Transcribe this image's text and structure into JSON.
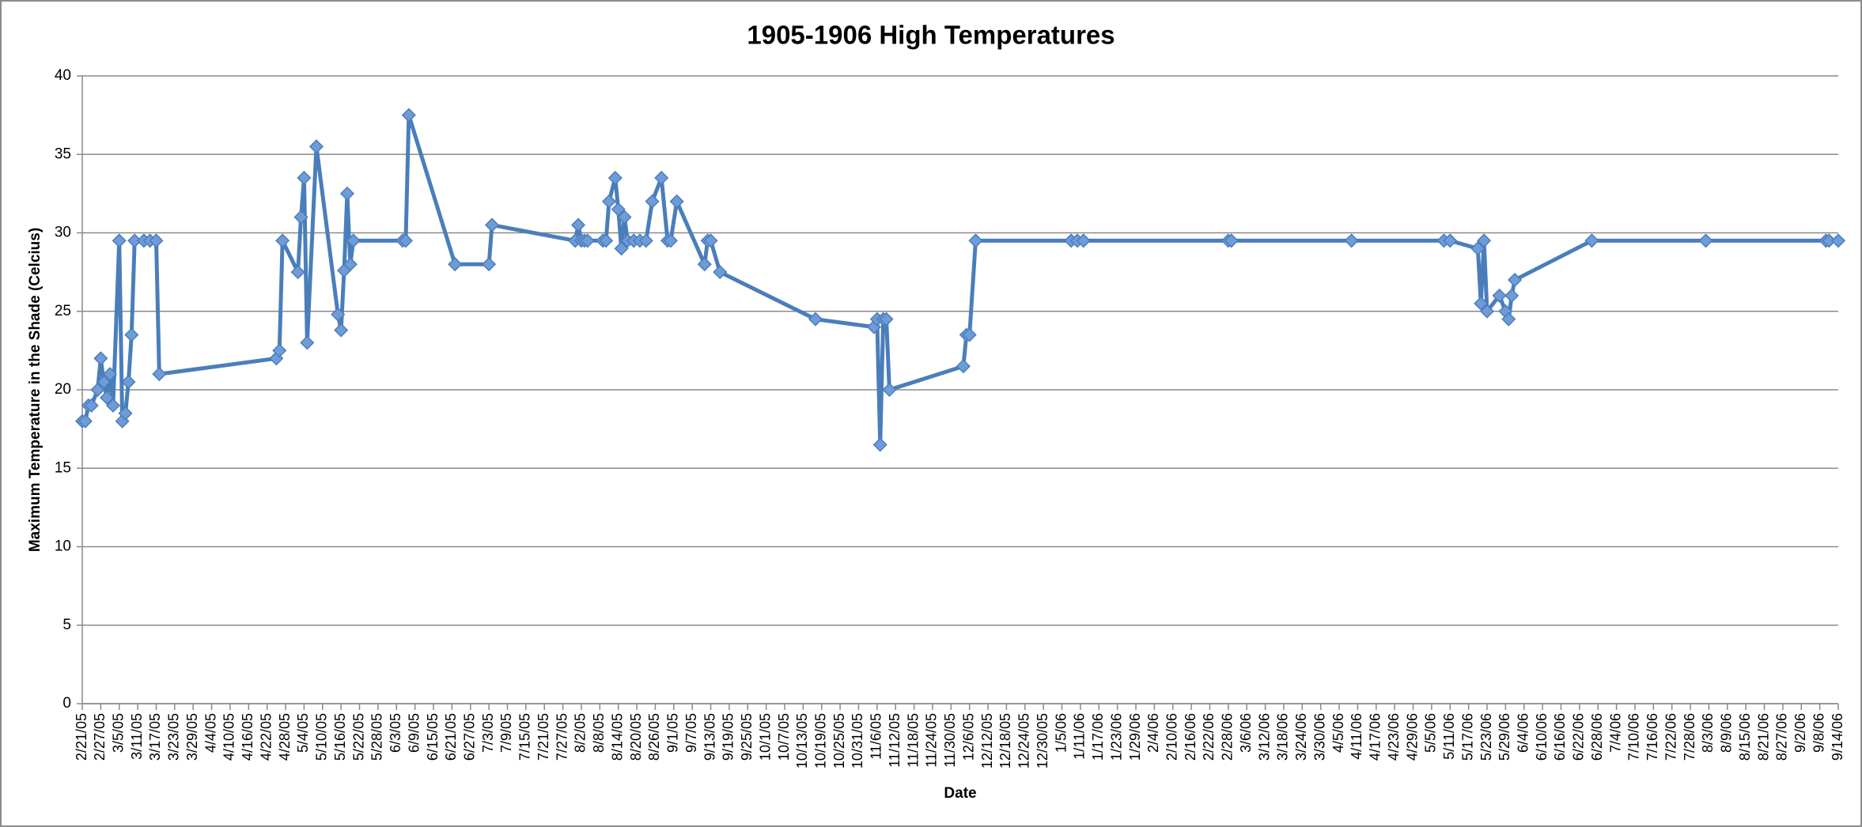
{
  "chart_data": {
    "type": "line",
    "title": "1905-1906 High Temperatures",
    "x_label": "Date",
    "y_label": "Maximum Temperature in the Shade (Celcius)",
    "color": "#4a7ebb",
    "marker_color": "#6f9bd8",
    "grid": true,
    "ylim": [
      0,
      40
    ],
    "yticks": [
      0,
      5,
      10,
      15,
      20,
      25,
      30,
      35,
      40
    ],
    "xlim": [
      "2/21/05",
      "9/14/06"
    ],
    "xticks": [
      "2/21/05",
      "2/27/05",
      "3/5/05",
      "3/11/05",
      "3/17/05",
      "3/23/05",
      "3/29/05",
      "4/4/05",
      "4/10/05",
      "4/16/05",
      "4/22/05",
      "4/28/05",
      "5/4/05",
      "5/10/05",
      "5/16/05",
      "5/22/05",
      "5/28/05",
      "6/3/05",
      "6/9/05",
      "6/15/05",
      "6/21/05",
      "6/27/05",
      "7/3/05",
      "7/9/05",
      "7/15/05",
      "7/21/05",
      "7/27/05",
      "8/2/05",
      "8/8/05",
      "8/14/05",
      "8/20/05",
      "8/26/05",
      "9/1/05",
      "9/7/05",
      "9/13/05",
      "9/19/05",
      "9/25/05",
      "10/1/05",
      "10/7/05",
      "10/13/05",
      "10/19/05",
      "10/25/05",
      "10/31/05",
      "11/6/05",
      "11/12/05",
      "11/18/05",
      "11/24/05",
      "11/30/05",
      "12/6/05",
      "12/12/05",
      "12/18/05",
      "12/24/05",
      "12/30/05",
      "1/5/06",
      "1/11/06",
      "1/17/06",
      "1/23/06",
      "1/29/06",
      "2/4/06",
      "2/10/06",
      "2/16/06",
      "2/22/06",
      "2/28/06",
      "3/6/06",
      "3/12/06",
      "3/18/06",
      "3/24/06",
      "3/30/06",
      "4/5/06",
      "4/11/06",
      "4/17/06",
      "4/23/06",
      "4/29/06",
      "5/5/06",
      "5/11/06",
      "5/17/06",
      "5/23/06",
      "5/29/06",
      "6/4/06",
      "6/10/06",
      "6/16/06",
      "6/22/06",
      "6/28/06",
      "7/4/06",
      "7/10/06",
      "7/16/06",
      "7/22/06",
      "7/28/06",
      "8/3/06",
      "8/9/06",
      "8/15/06",
      "8/21/06",
      "8/27/06",
      "9/2/06",
      "9/8/06",
      "9/14/06"
    ],
    "x": [
      "2/21/05",
      "2/22/05",
      "2/23/05",
      "2/24/05",
      "2/26/05",
      "2/27/05",
      "2/28/05",
      "3/1/05",
      "3/2/05",
      "3/3/05",
      "3/5/05",
      "3/6/05",
      "3/7/05",
      "3/8/05",
      "3/9/05",
      "3/10/05",
      "3/13/05",
      "3/15/05",
      "3/17/05",
      "3/18/05",
      "4/25/05",
      "4/26/05",
      "4/27/05",
      "5/2/05",
      "5/3/05",
      "5/4/05",
      "5/5/05",
      "5/8/05",
      "5/15/05",
      "5/16/05",
      "5/17/05",
      "5/18/05",
      "5/19/05",
      "5/20/05",
      "6/5/05",
      "6/6/05",
      "6/7/05",
      "6/22/05",
      "7/3/05",
      "7/4/05",
      "7/31/05",
      "8/1/05",
      "8/2/05",
      "8/3/05",
      "8/4/05",
      "8/9/05",
      "8/10/05",
      "8/11/05",
      "8/13/05",
      "8/14/05",
      "8/15/05",
      "8/16/05",
      "8/17/05",
      "8/19/05",
      "8/21/05",
      "8/23/05",
      "8/25/05",
      "8/28/05",
      "8/30/05",
      "8/31/05",
      "9/2/05",
      "9/11/05",
      "9/12/05",
      "9/13/05",
      "9/16/05",
      "10/17/05",
      "11/5/05",
      "11/6/05",
      "11/7/05",
      "11/8/05",
      "11/9/05",
      "11/10/05",
      "12/4/05",
      "12/5/05",
      "12/6/05",
      "12/8/05",
      "1/8/06",
      "1/10/06",
      "1/12/06",
      "2/28/06",
      "3/1/06",
      "4/9/06",
      "5/9/06",
      "5/11/06",
      "5/20/06",
      "5/21/06",
      "5/22/06",
      "5/23/06",
      "5/27/06",
      "5/29/06",
      "5/30/06",
      "5/31/06",
      "6/1/06",
      "6/26/06",
      "8/2/06",
      "9/10/06",
      "9/11/06",
      "9/14/06"
    ],
    "values": [
      18,
      18,
      19,
      19,
      20,
      22,
      20.5,
      19.5,
      21,
      19,
      29.5,
      18,
      18.5,
      20.5,
      23.5,
      29.5,
      29.5,
      29.5,
      29.5,
      21,
      22,
      22.5,
      29.5,
      27.5,
      31,
      33.5,
      23,
      35.5,
      24.8,
      23.8,
      27.6,
      32.5,
      28,
      29.5,
      29.5,
      29.5,
      37.5,
      28,
      28,
      30.5,
      29.5,
      30.5,
      29.5,
      29.5,
      29.5,
      29.5,
      29.5,
      32,
      33.5,
      31.5,
      29,
      31,
      29.5,
      29.5,
      29.5,
      29.5,
      32,
      33.5,
      29.5,
      29.5,
      32,
      28,
      29.5,
      29.5,
      27.5,
      24.5,
      24,
      24.5,
      16.5,
      24.5,
      24.5,
      20,
      21.5,
      23.5,
      23.5,
      29.5,
      29.5,
      29.5,
      29.5,
      29.5,
      29.5,
      29.5,
      29.5,
      29.5,
      29,
      25.5,
      29.5,
      25,
      26,
      25,
      24.5,
      26,
      27,
      29.5,
      29.5,
      29.5,
      29.5,
      29.5
    ]
  }
}
